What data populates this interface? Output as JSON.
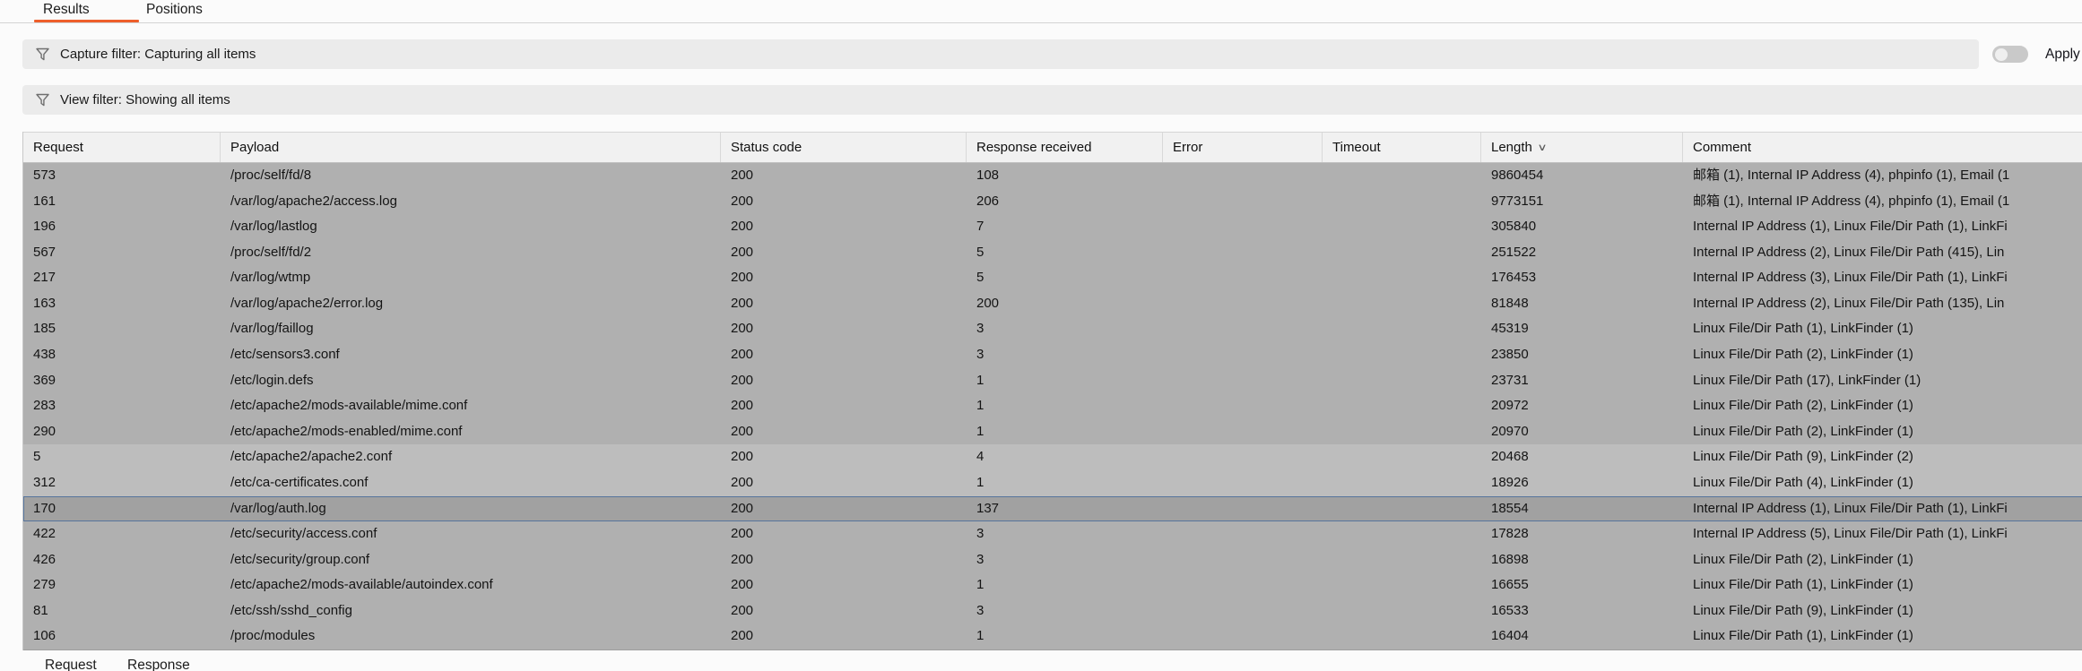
{
  "tabs": {
    "items": [
      {
        "label": "Results",
        "active": true
      },
      {
        "label": "Positions",
        "active": false
      }
    ]
  },
  "capture_filter": {
    "label": "Capture filter: Capturing all items",
    "icon": "funnel-icon",
    "toggle_state": "off",
    "apply_label": "Apply"
  },
  "view_filter": {
    "label": "View filter: Showing all items",
    "icon": "funnel-icon"
  },
  "table": {
    "columns": [
      {
        "id": "request",
        "label": "Request"
      },
      {
        "id": "payload",
        "label": "Payload"
      },
      {
        "id": "status-code",
        "label": "Status code"
      },
      {
        "id": "response-received",
        "label": "Response received"
      },
      {
        "id": "error",
        "label": "Error"
      },
      {
        "id": "timeout",
        "label": "Timeout"
      },
      {
        "id": "length",
        "label": "Length",
        "sort": "desc"
      },
      {
        "id": "comment",
        "label": "Comment"
      }
    ],
    "rows": [
      {
        "state": "normal",
        "cells": [
          "573",
          "/proc/self/fd/8",
          "200",
          "108",
          "",
          "",
          "9860454",
          "邮箱 (1), Internal IP Address (4), phpinfo (1), Email (1"
        ]
      },
      {
        "state": "normal",
        "cells": [
          "161",
          "/var/log/apache2/access.log",
          "200",
          "206",
          "",
          "",
          "9773151",
          "邮箱 (1), Internal IP Address (4), phpinfo (1), Email (1"
        ]
      },
      {
        "state": "normal",
        "cells": [
          "196",
          "/var/log/lastlog",
          "200",
          "7",
          "",
          "",
          "305840",
          "Internal IP Address (1), Linux File/Dir Path (1), LinkFi"
        ]
      },
      {
        "state": "normal",
        "cells": [
          "567",
          "/proc/self/fd/2",
          "200",
          "5",
          "",
          "",
          "251522",
          "Internal IP Address (2), Linux File/Dir Path (415), Lin"
        ]
      },
      {
        "state": "normal",
        "cells": [
          "217",
          "/var/log/wtmp",
          "200",
          "5",
          "",
          "",
          "176453",
          "Internal IP Address (3), Linux File/Dir Path (1), LinkFi"
        ]
      },
      {
        "state": "normal",
        "cells": [
          "163",
          "/var/log/apache2/error.log",
          "200",
          "200",
          "",
          "",
          "81848",
          "Internal IP Address (2), Linux File/Dir Path (135), Lin"
        ]
      },
      {
        "state": "normal",
        "cells": [
          "185",
          "/var/log/faillog",
          "200",
          "3",
          "",
          "",
          "45319",
          "Linux File/Dir Path (1), LinkFinder (1)"
        ]
      },
      {
        "state": "normal",
        "cells": [
          "438",
          "/etc/sensors3.conf",
          "200",
          "3",
          "",
          "",
          "23850",
          "Linux File/Dir Path (2), LinkFinder (1)"
        ]
      },
      {
        "state": "normal",
        "cells": [
          "369",
          "/etc/login.defs",
          "200",
          "1",
          "",
          "",
          "23731",
          "Linux File/Dir Path (17), LinkFinder (1)"
        ]
      },
      {
        "state": "normal",
        "cells": [
          "283",
          "/etc/apache2/mods-available/mime.conf",
          "200",
          "1",
          "",
          "",
          "20972",
          "Linux File/Dir Path (2), LinkFinder (1)"
        ]
      },
      {
        "state": "normal",
        "cells": [
          "290",
          "/etc/apache2/mods-enabled/mime.conf",
          "200",
          "1",
          "",
          "",
          "20970",
          "Linux File/Dir Path (2), LinkFinder (1)"
        ]
      },
      {
        "state": "light",
        "cells": [
          "5",
          "/etc/apache2/apache2.conf",
          "200",
          "4",
          "",
          "",
          "20468",
          "Linux File/Dir Path (9), LinkFinder (2)"
        ]
      },
      {
        "state": "light",
        "cells": [
          "312",
          "/etc/ca-certificates.conf",
          "200",
          "1",
          "",
          "",
          "18926",
          "Linux File/Dir Path (4), LinkFinder (1)"
        ]
      },
      {
        "state": "selected",
        "cells": [
          "170",
          "/var/log/auth.log",
          "200",
          "137",
          "",
          "",
          "18554",
          "Internal IP Address (1), Linux File/Dir Path (1), LinkFi"
        ]
      },
      {
        "state": "normal",
        "cells": [
          "422",
          "/etc/security/access.conf",
          "200",
          "3",
          "",
          "",
          "17828",
          "Internal IP Address (5), Linux File/Dir Path (1), LinkFi"
        ]
      },
      {
        "state": "normal",
        "cells": [
          "426",
          "/etc/security/group.conf",
          "200",
          "3",
          "",
          "",
          "16898",
          "Linux File/Dir Path (2), LinkFinder (1)"
        ]
      },
      {
        "state": "normal",
        "cells": [
          "279",
          "/etc/apache2/mods-available/autoindex.conf",
          "200",
          "1",
          "",
          "",
          "16655",
          "Linux File/Dir Path (1), LinkFinder (1)"
        ]
      },
      {
        "state": "normal",
        "cells": [
          "81",
          "/etc/ssh/sshd_config",
          "200",
          "3",
          "",
          "",
          "16533",
          "Linux File/Dir Path (9), LinkFinder (1)"
        ]
      },
      {
        "state": "normal",
        "cells": [
          "106",
          "/proc/modules",
          "200",
          "1",
          "",
          "",
          "16404",
          "Linux File/Dir Path (1), LinkFinder (1)"
        ]
      }
    ]
  },
  "bottom_tabs": {
    "items": [
      "Request",
      "Response"
    ]
  },
  "colors": {
    "accent_orange": "#ee5f2b",
    "selection_outline_blue": "#56749c",
    "row_gray": "#b0b0b0",
    "row_light_gray": "#bdbdbd",
    "row_selected_gray": "#a1a1a1",
    "filterbar_gray": "#ebebeb"
  }
}
